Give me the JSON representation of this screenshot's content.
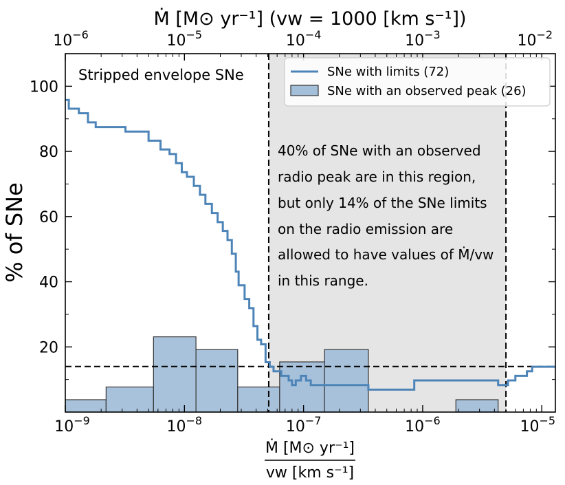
{
  "chart_data": {
    "type": "histogram+step-line",
    "panel_label": "Stripped envelope SNe",
    "ylabel": "% of SNe",
    "xlabel": {
      "numerator": "Ṁ [M⊙ yr⁻¹]",
      "denominator": "vw [km s⁻¹]"
    },
    "top_axis_label": "Ṁ [M⊙ yr⁻¹] (vw = 1000 [km s⁻¹])",
    "x_scale": "log",
    "xlim": [
      1e-09,
      1.3e-05
    ],
    "ylim": [
      0,
      110
    ],
    "yticks": [
      20,
      40,
      60,
      80,
      100
    ],
    "ytick_labels": [
      "20",
      "40",
      "60",
      "80",
      "100"
    ],
    "xticks": [
      1e-09,
      1e-08,
      1e-07,
      1e-06,
      1e-05
    ],
    "xtick_labels": [
      {
        "base": "10",
        "exp": "−9"
      },
      {
        "base": "10",
        "exp": "−8"
      },
      {
        "base": "10",
        "exp": "−7"
      },
      {
        "base": "10",
        "exp": "−6"
      },
      {
        "base": "10",
        "exp": "−5"
      }
    ],
    "top_xticks": [
      1e-09,
      1e-08,
      1e-07,
      1e-06,
      1e-05
    ],
    "top_xtick_labels": [
      {
        "base": "10",
        "exp": "−6"
      },
      {
        "base": "10",
        "exp": "−5"
      },
      {
        "base": "10",
        "exp": "−4"
      },
      {
        "base": "10",
        "exp": "−3"
      },
      {
        "base": "10",
        "exp": "−2"
      }
    ],
    "histogram": {
      "name": "SNe with an observed peak (26)",
      "color": "#a4bfd9",
      "edge": "#333333",
      "bins": [
        {
          "x0": 1e-09,
          "x1": 2.2e-09,
          "value": 3.8
        },
        {
          "x0": 2.2e-09,
          "x1": 5.5e-09,
          "value": 7.7
        },
        {
          "x0": 5.5e-09,
          "x1": 1.25e-08,
          "value": 23.1
        },
        {
          "x0": 1.25e-08,
          "x1": 2.8e-08,
          "value": 19.2
        },
        {
          "x0": 2.8e-08,
          "x1": 6.3e-08,
          "value": 7.7
        },
        {
          "x0": 6.3e-08,
          "x1": 1.5e-07,
          "value": 15.4
        },
        {
          "x0": 1.5e-07,
          "x1": 3.5e-07,
          "value": 19.2
        },
        {
          "x0": 1.9e-06,
          "x1": 4.3e-06,
          "value": 3.8
        }
      ]
    },
    "line": {
      "name": "SNe with limits (72)",
      "color": "#4d84b8",
      "points": [
        [
          1e-09,
          95.8
        ],
        [
          1.07e-09,
          93.1
        ],
        [
          1.3e-09,
          91.7
        ],
        [
          1.55e-09,
          88.9
        ],
        [
          1.8e-09,
          87.5
        ],
        [
          3.2e-09,
          86.1
        ],
        [
          5e-09,
          83.3
        ],
        [
          6.3e-09,
          80.6
        ],
        [
          7.5e-09,
          79.2
        ],
        [
          8.5e-09,
          76.4
        ],
        [
          9.5e-09,
          73.6
        ],
        [
          1.05e-08,
          72.2
        ],
        [
          1.2e-08,
          69.4
        ],
        [
          1.35e-08,
          66.7
        ],
        [
          1.5e-08,
          63.9
        ],
        [
          1.7e-08,
          61.1
        ],
        [
          1.9e-08,
          58.3
        ],
        [
          2.1e-08,
          55.6
        ],
        [
          2.3e-08,
          52.8
        ],
        [
          2.5e-08,
          48.6
        ],
        [
          2.7e-08,
          43.1
        ],
        [
          2.85e-08,
          38.9
        ],
        [
          3.2e-08,
          34.7
        ],
        [
          3.5e-08,
          31.9
        ],
        [
          3.8e-08,
          26.4
        ],
        [
          4.1e-08,
          22.2
        ],
        [
          4.4e-08,
          20.8
        ],
        [
          4.8e-08,
          15.3
        ],
        [
          5.2e-08,
          13.9
        ],
        [
          5.6e-08,
          12.5
        ],
        [
          6.5e-08,
          11.1
        ],
        [
          7.5e-08,
          9.7
        ],
        [
          8e-08,
          8.3
        ],
        [
          8.6e-08,
          9.7
        ],
        [
          9.5e-08,
          11.1
        ],
        [
          1.05e-07,
          9.7
        ],
        [
          1.15e-07,
          8.3
        ],
        [
          2.5e-07,
          8.3
        ],
        [
          3.5e-07,
          6.9
        ],
        [
          7e-07,
          6.9
        ],
        [
          8.5e-07,
          9.7
        ],
        [
          3.5e-06,
          9.7
        ],
        [
          4.3e-06,
          8.3
        ],
        [
          5.2e-06,
          9.7
        ],
        [
          6e-06,
          11.1
        ],
        [
          7.5e-06,
          12.5
        ],
        [
          8.3e-06,
          13.9
        ],
        [
          1.3e-05,
          13.9
        ]
      ]
    },
    "hline": {
      "y": 14,
      "style": "dashed"
    },
    "vlines": [
      {
        "x": 5.1e-08,
        "style": "dashed"
      },
      {
        "x": 5e-06,
        "style": "dashed"
      }
    ],
    "shaded_region": {
      "x0": 5.1e-08,
      "x1": 5e-06,
      "color": "#e5e5e5"
    },
    "legend": {
      "placement": "top-right",
      "entries": [
        {
          "label": "SNe with limits (72)",
          "kind": "line"
        },
        {
          "label": "SNe with an observed peak (26)",
          "kind": "patch"
        }
      ]
    },
    "annotation_lines": [
      "40% of SNe with an observed",
      "radio peak are in this region,",
      "but only 14% of the SNe limits",
      "on the radio emission are",
      "allowed to have values of Ṁ/vw",
      "in this range."
    ]
  }
}
